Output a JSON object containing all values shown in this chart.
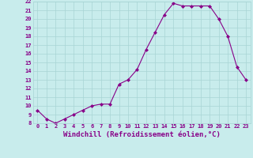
{
  "x": [
    0,
    1,
    2,
    3,
    4,
    5,
    6,
    7,
    8,
    9,
    10,
    11,
    12,
    13,
    14,
    15,
    16,
    17,
    18,
    19,
    20,
    21,
    22,
    23
  ],
  "y": [
    9.5,
    8.5,
    8.0,
    8.5,
    9.0,
    9.5,
    10.0,
    10.2,
    10.2,
    12.5,
    13.0,
    14.2,
    16.5,
    18.5,
    20.5,
    21.8,
    21.5,
    21.5,
    21.5,
    21.5,
    20.0,
    18.0,
    14.5,
    13.0
  ],
  "xlim": [
    -0.5,
    23.5
  ],
  "ylim": [
    8,
    22
  ],
  "xticks": [
    0,
    1,
    2,
    3,
    4,
    5,
    6,
    7,
    8,
    9,
    10,
    11,
    12,
    13,
    14,
    15,
    16,
    17,
    18,
    19,
    20,
    21,
    22,
    23
  ],
  "yticks": [
    8,
    9,
    10,
    11,
    12,
    13,
    14,
    15,
    16,
    17,
    18,
    19,
    20,
    21,
    22
  ],
  "xlabel": "Windchill (Refroidissement éolien,°C)",
  "line_color": "#880088",
  "marker": "D",
  "marker_size": 2.0,
  "bg_color": "#c8ecec",
  "grid_color": "#a8d4d4",
  "tick_fontsize": 5.0,
  "label_fontsize": 6.5
}
